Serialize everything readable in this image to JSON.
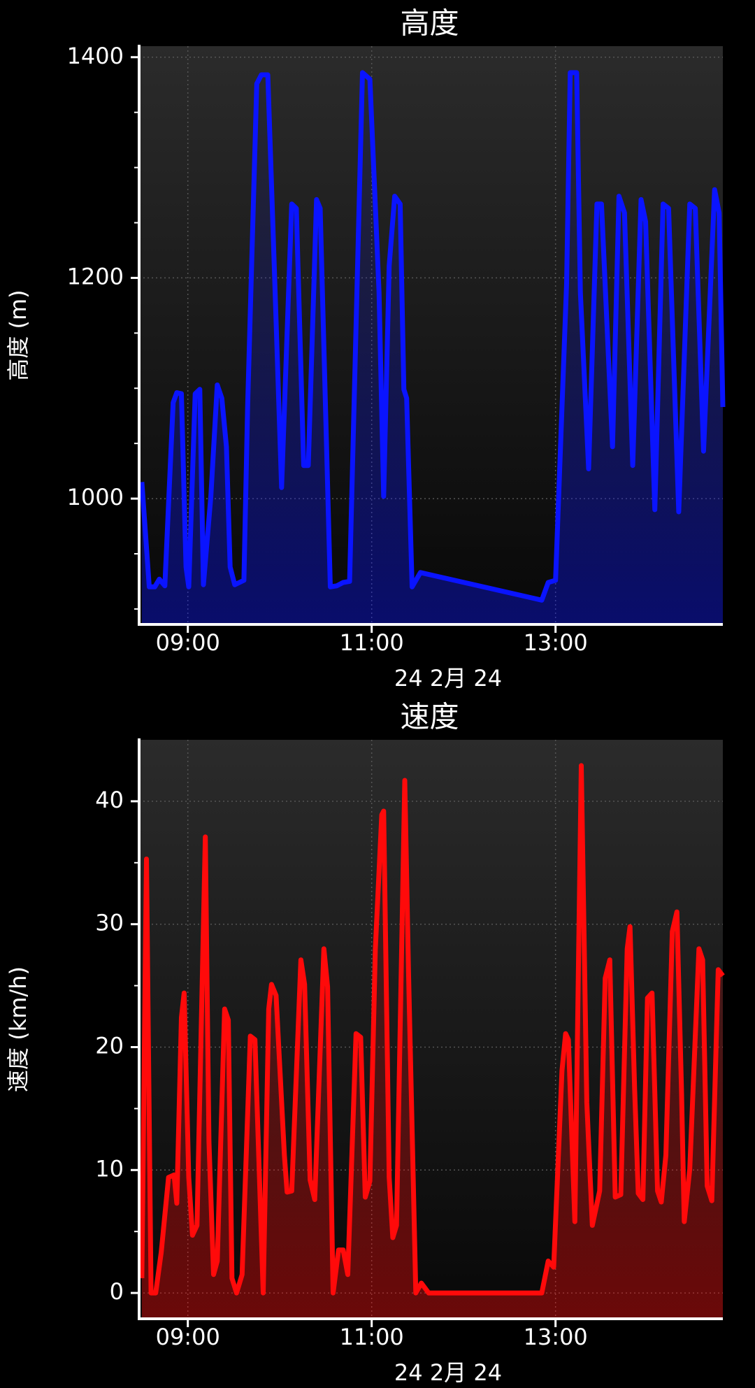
{
  "chart_data": [
    {
      "type": "line",
      "title": "高度",
      "ylabel": "高度 (m)",
      "xlabel": "24 2月 24",
      "color": "#0a14ff",
      "grid": true,
      "x": [
        8.5,
        8.58,
        8.64,
        8.69,
        8.75,
        8.84,
        8.88,
        8.93,
        8.98,
        9.01,
        9.08,
        9.13,
        9.17,
        9.25,
        9.32,
        9.37,
        9.42,
        9.46,
        9.51,
        9.61,
        9.65,
        9.75,
        9.8,
        9.87,
        9.94,
        10.02,
        10.13,
        10.18,
        10.26,
        10.31,
        10.4,
        10.44,
        10.55,
        10.62,
        10.69,
        10.76,
        10.9,
        10.98,
        11.08,
        11.13,
        11.19,
        11.25,
        11.31,
        11.35,
        11.38,
        11.44,
        11.53,
        12.85,
        12.92,
        13.0,
        13.12,
        13.16,
        13.23,
        13.27,
        13.36,
        13.45,
        13.5,
        13.62,
        13.69,
        13.75,
        13.84,
        13.93,
        13.98,
        14.08,
        14.17,
        14.23,
        14.34,
        14.46,
        14.52,
        14.61,
        14.73,
        14.78,
        14.82
      ],
      "values": [
        1015,
        920,
        920,
        927,
        921,
        1087,
        1096,
        1095,
        938,
        920,
        1095,
        1099,
        922,
        1002,
        1103,
        1091,
        1047,
        938,
        922,
        926,
        1083,
        1376,
        1384,
        1384,
        1211,
        1010,
        1267,
        1263,
        1030,
        1030,
        1271,
        1263,
        920,
        921,
        924,
        925,
        1386,
        1380,
        1187,
        1002,
        1211,
        1274,
        1267,
        1099,
        1091,
        920,
        933,
        908,
        924,
        926,
        1195,
        1386,
        1386,
        1187,
        1027,
        1267,
        1267,
        1047,
        1274,
        1259,
        1030,
        1271,
        1251,
        990,
        1267,
        1263,
        988,
        1267,
        1263,
        1043,
        1280,
        1259,
        1083
      ],
      "xlim": [
        8.47,
        14.82
      ],
      "xticks": [
        {
          "value": 9,
          "label": "09:00"
        },
        {
          "value": 11,
          "label": "11:00"
        },
        {
          "value": 13,
          "label": "13:00"
        }
      ],
      "ylim": [
        886,
        1410
      ],
      "yticks": [
        1000,
        1200,
        1400
      ],
      "yminor": [
        900,
        950,
        1050,
        1100,
        1150,
        1250,
        1300,
        1350
      ]
    },
    {
      "type": "line",
      "title": "速度",
      "ylabel": "速度 (km/h)",
      "xlabel": "24 2月 24",
      "color": "#ff0a0a",
      "grid": true,
      "x": [
        8.5,
        8.55,
        8.6,
        8.65,
        8.71,
        8.79,
        8.85,
        8.88,
        8.93,
        8.96,
        9.01,
        9.05,
        9.1,
        9.19,
        9.23,
        9.28,
        9.32,
        9.4,
        9.44,
        9.48,
        9.53,
        9.59,
        9.68,
        9.73,
        9.82,
        9.88,
        9.91,
        9.96,
        10.05,
        10.08,
        10.13,
        10.23,
        10.27,
        10.33,
        10.38,
        10.48,
        10.52,
        10.58,
        10.64,
        10.69,
        10.74,
        10.83,
        10.88,
        10.93,
        10.98,
        11.04,
        11.11,
        11.13,
        11.19,
        11.23,
        11.27,
        11.36,
        11.4,
        11.48,
        11.54,
        11.62,
        12.85,
        12.92,
        12.98,
        13.07,
        13.11,
        13.14,
        13.21,
        13.28,
        13.34,
        13.4,
        13.48,
        13.54,
        13.59,
        13.65,
        13.71,
        13.78,
        13.81,
        13.86,
        13.9,
        13.95,
        14.0,
        14.05,
        14.11,
        14.15,
        14.2,
        14.27,
        14.32,
        14.37,
        14.4,
        14.46,
        14.56,
        14.6,
        14.65,
        14.7,
        14.77,
        14.82
      ],
      "values": [
        1.2,
        35.3,
        0,
        0,
        3.3,
        9.4,
        9.6,
        7.3,
        22.4,
        24.4,
        9.4,
        4.7,
        5.5,
        37.1,
        12.3,
        1.5,
        2.6,
        23.1,
        22.2,
        1.2,
        0,
        1.5,
        20.9,
        20.6,
        0,
        23.1,
        25.1,
        24.2,
        11.2,
        8.2,
        8.3,
        27.1,
        25.1,
        9.2,
        7.6,
        28.0,
        24.9,
        0,
        3.5,
        3.5,
        1.5,
        21.1,
        20.8,
        7.8,
        9.1,
        28.0,
        38.9,
        39.2,
        9.4,
        4.5,
        5.5,
        41.7,
        26.3,
        0,
        0.8,
        0,
        0,
        2.6,
        2.1,
        18.1,
        21.1,
        20.6,
        5.8,
        42.9,
        15.5,
        5.5,
        8.3,
        25.6,
        27.1,
        7.8,
        8.0,
        28.0,
        29.8,
        16.6,
        8.1,
        7.6,
        24.0,
        24.4,
        8.3,
        7.4,
        11.2,
        29.4,
        31.0,
        16.6,
        5.8,
        10.1,
        28.0,
        27.1,
        8.7,
        7.5,
        26.3,
        25.8
      ],
      "xlim": [
        8.47,
        14.82
      ],
      "xticks": [
        {
          "value": 9,
          "label": "09:00"
        },
        {
          "value": 11,
          "label": "11:00"
        },
        {
          "value": 13,
          "label": "13:00"
        }
      ],
      "ylim": [
        -2.1,
        45
      ],
      "yticks": [
        0,
        10,
        20,
        30,
        40
      ],
      "yminor": [
        5,
        15,
        25,
        35
      ]
    }
  ]
}
